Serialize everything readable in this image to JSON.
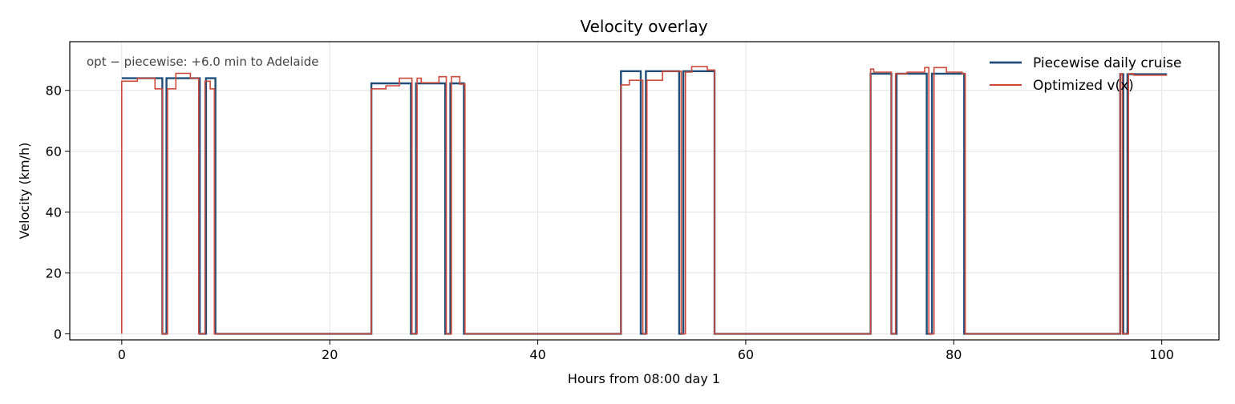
{
  "chart_data": {
    "type": "line",
    "title": "Velocity overlay",
    "xlabel": "Hours from 08:00 day 1",
    "ylabel": "Velocity (km/h)",
    "xlim": [
      -5,
      105.5
    ],
    "ylim": [
      -2,
      96
    ],
    "xticks": [
      0,
      20,
      40,
      60,
      80,
      100
    ],
    "yticks": [
      0,
      20,
      40,
      60,
      80
    ],
    "grid": true,
    "legend_position": "top-right",
    "annotation": "opt − piecewise: +6.0 min to Adelaide",
    "series": [
      {
        "name": "Piecewise daily cruise",
        "color": "#1f4e79",
        "line_width": 2.4,
        "points": [
          [
            0,
            84
          ],
          [
            3.9,
            84
          ],
          [
            3.9,
            0
          ],
          [
            4.3,
            0
          ],
          [
            4.3,
            84
          ],
          [
            7.5,
            84
          ],
          [
            7.5,
            0
          ],
          [
            8.1,
            0
          ],
          [
            8.1,
            84
          ],
          [
            9.0,
            84
          ],
          [
            9.0,
            0
          ],
          [
            24.0,
            0
          ],
          [
            24.0,
            82.3
          ],
          [
            27.8,
            82.3
          ],
          [
            27.8,
            0
          ],
          [
            28.3,
            0
          ],
          [
            28.3,
            82.3
          ],
          [
            31.1,
            82.3
          ],
          [
            31.1,
            0
          ],
          [
            31.6,
            0
          ],
          [
            31.6,
            82.3
          ],
          [
            32.9,
            82.3
          ],
          [
            32.9,
            0
          ],
          [
            48.0,
            0
          ],
          [
            48.0,
            86.3
          ],
          [
            49.9,
            86.3
          ],
          [
            49.9,
            0
          ],
          [
            50.4,
            0
          ],
          [
            50.4,
            86.3
          ],
          [
            53.6,
            86.3
          ],
          [
            53.6,
            0
          ],
          [
            54.0,
            0
          ],
          [
            54.0,
            86.3
          ],
          [
            57.0,
            86.3
          ],
          [
            57.0,
            0
          ],
          [
            72.0,
            0
          ],
          [
            72.0,
            85.5
          ],
          [
            74.0,
            85.5
          ],
          [
            74.0,
            0
          ],
          [
            74.5,
            0
          ],
          [
            74.5,
            85.5
          ],
          [
            77.4,
            85.5
          ],
          [
            77.4,
            0
          ],
          [
            77.9,
            0
          ],
          [
            77.9,
            85.5
          ],
          [
            81.0,
            85.5
          ],
          [
            81.0,
            0
          ],
          [
            96.0,
            0
          ],
          [
            96.0,
            85.3
          ],
          [
            96.3,
            85.3
          ],
          [
            96.3,
            0
          ],
          [
            96.7,
            0
          ],
          [
            96.7,
            85.3
          ],
          [
            100.5,
            85.3
          ]
        ]
      },
      {
        "name": "Optimized v(x)",
        "color": "#cd4a3b",
        "line_width": 1.6,
        "points": [
          [
            0,
            0
          ],
          [
            0,
            83
          ],
          [
            1.5,
            83
          ],
          [
            1.5,
            84
          ],
          [
            3.2,
            84
          ],
          [
            3.2,
            80.5
          ],
          [
            3.9,
            80.5
          ],
          [
            3.9,
            0
          ],
          [
            4.4,
            0
          ],
          [
            4.4,
            80.5
          ],
          [
            5.2,
            80.5
          ],
          [
            5.2,
            85.6
          ],
          [
            6.6,
            85.6
          ],
          [
            6.6,
            84
          ],
          [
            7.4,
            84
          ],
          [
            7.4,
            0
          ],
          [
            8.0,
            0
          ],
          [
            8.0,
            83
          ],
          [
            8.5,
            83
          ],
          [
            8.5,
            80.5
          ],
          [
            8.9,
            80.5
          ],
          [
            8.9,
            0
          ],
          [
            24.0,
            0
          ],
          [
            24.0,
            80.5
          ],
          [
            25.4,
            80.5
          ],
          [
            25.4,
            81.5
          ],
          [
            26.7,
            81.5
          ],
          [
            26.7,
            84
          ],
          [
            27.9,
            84
          ],
          [
            27.9,
            0
          ],
          [
            28.4,
            0
          ],
          [
            28.4,
            84
          ],
          [
            28.8,
            84
          ],
          [
            28.8,
            82.5
          ],
          [
            30.5,
            82.5
          ],
          [
            30.5,
            84.5
          ],
          [
            31.2,
            84.5
          ],
          [
            31.2,
            0
          ],
          [
            31.7,
            0
          ],
          [
            31.7,
            84.5
          ],
          [
            32.5,
            84.5
          ],
          [
            32.5,
            82
          ],
          [
            33.0,
            82
          ],
          [
            33.0,
            0
          ],
          [
            48.0,
            0
          ],
          [
            48.0,
            81.8
          ],
          [
            48.8,
            81.8
          ],
          [
            48.8,
            83.3
          ],
          [
            50.1,
            83.3
          ],
          [
            50.1,
            0
          ],
          [
            50.5,
            0
          ],
          [
            50.5,
            83.3
          ],
          [
            52.0,
            83.3
          ],
          [
            52.0,
            86.3
          ],
          [
            53.8,
            86.3
          ],
          [
            53.8,
            0
          ],
          [
            54.2,
            0
          ],
          [
            54.2,
            86
          ],
          [
            54.8,
            86
          ],
          [
            54.8,
            87.8
          ],
          [
            56.3,
            87.8
          ],
          [
            56.3,
            86.7
          ],
          [
            57.0,
            86.7
          ],
          [
            57.0,
            0
          ],
          [
            72.0,
            0
          ],
          [
            72.0,
            87
          ],
          [
            72.3,
            87
          ],
          [
            72.3,
            86
          ],
          [
            74.0,
            86
          ],
          [
            74.0,
            0
          ],
          [
            74.4,
            0
          ],
          [
            74.4,
            85.5
          ],
          [
            75.5,
            85.5
          ],
          [
            75.5,
            86
          ],
          [
            77.2,
            86
          ],
          [
            77.2,
            87.5
          ],
          [
            77.6,
            87.5
          ],
          [
            77.6,
            0
          ],
          [
            78.1,
            0
          ],
          [
            78.1,
            87.5
          ],
          [
            79.3,
            87.5
          ],
          [
            79.3,
            86
          ],
          [
            80.8,
            86
          ],
          [
            80.8,
            85.5
          ],
          [
            81.1,
            85.5
          ],
          [
            81.1,
            0
          ],
          [
            96.0,
            0
          ],
          [
            96.0,
            85.5
          ],
          [
            96.2,
            85.5
          ],
          [
            96.2,
            0
          ],
          [
            96.8,
            0
          ],
          [
            96.8,
            85.5
          ],
          [
            97.3,
            85.5
          ],
          [
            97.3,
            85
          ],
          [
            100.5,
            85
          ]
        ]
      }
    ]
  }
}
